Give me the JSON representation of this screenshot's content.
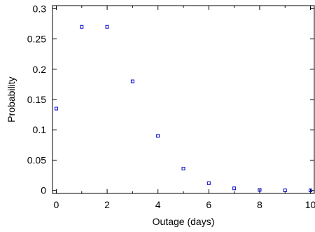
{
  "chart_data": {
    "type": "scatter",
    "title": "",
    "xlabel": "Outage (days)",
    "ylabel": "Probability",
    "xlim": [
      -0.15,
      10.15
    ],
    "ylim": [
      -0.005,
      0.305
    ],
    "grid": false,
    "legend": "none",
    "marker": "open-square",
    "marker_color": "#0000cc",
    "x_ticks": [
      0,
      2,
      4,
      6,
      8,
      10
    ],
    "x_tick_labels": [
      "0",
      "2",
      "4",
      "6",
      "8",
      "10"
    ],
    "y_ticks": [
      0,
      0.05,
      0.1,
      0.15,
      0.2,
      0.25,
      0.3
    ],
    "y_tick_labels": [
      "0",
      "0.05",
      "0.1",
      "0.15",
      "0.2",
      "0.25",
      "0.3"
    ],
    "x_minor_ticks": [
      1,
      3,
      5,
      7,
      9
    ],
    "y_minor_ticks": [],
    "x": [
      0,
      1,
      2,
      3,
      4,
      5,
      6,
      7,
      8,
      9,
      10
    ],
    "y": [
      0.135,
      0.27,
      0.27,
      0.18,
      0.09,
      0.036,
      0.012,
      0.0034,
      0.0009,
      0.0002,
      4e-05
    ]
  }
}
